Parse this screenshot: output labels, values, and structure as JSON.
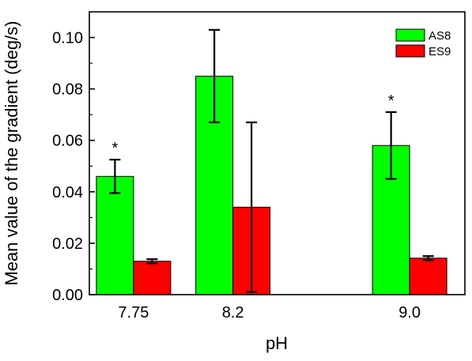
{
  "chart_data": {
    "type": "bar",
    "xlabel": "pH",
    "ylabel": "Mean value of the gradient (deg/s)",
    "ylim": [
      0.0,
      0.11
    ],
    "yticks": [
      "0.00",
      "0.02",
      "0.04",
      "0.06",
      "0.08",
      "0.10"
    ],
    "ytick_values": [
      0.0,
      0.02,
      0.04,
      0.06,
      0.08,
      0.1
    ],
    "x_positions": [
      7.75,
      8.2,
      9.0
    ],
    "xlim": [
      7.55,
      9.25
    ],
    "categories": [
      "7.75",
      "8.2",
      "9.0"
    ],
    "series": [
      {
        "name": "AS8",
        "color": "#00ff00",
        "values": [
          0.046,
          0.085,
          0.058
        ],
        "errors": [
          0.0065,
          0.018,
          0.013
        ]
      },
      {
        "name": "ES9",
        "color": "#ff0000",
        "values": [
          0.013,
          0.034,
          0.0142
        ],
        "errors": [
          0.0008,
          0.033,
          0.0008
        ]
      }
    ],
    "annotations": [
      {
        "category": "7.75",
        "series": "AS8",
        "text": "*"
      },
      {
        "category": "9.0",
        "series": "AS8",
        "text": "*"
      }
    ],
    "legend_position": "top-right",
    "grid": false
  }
}
